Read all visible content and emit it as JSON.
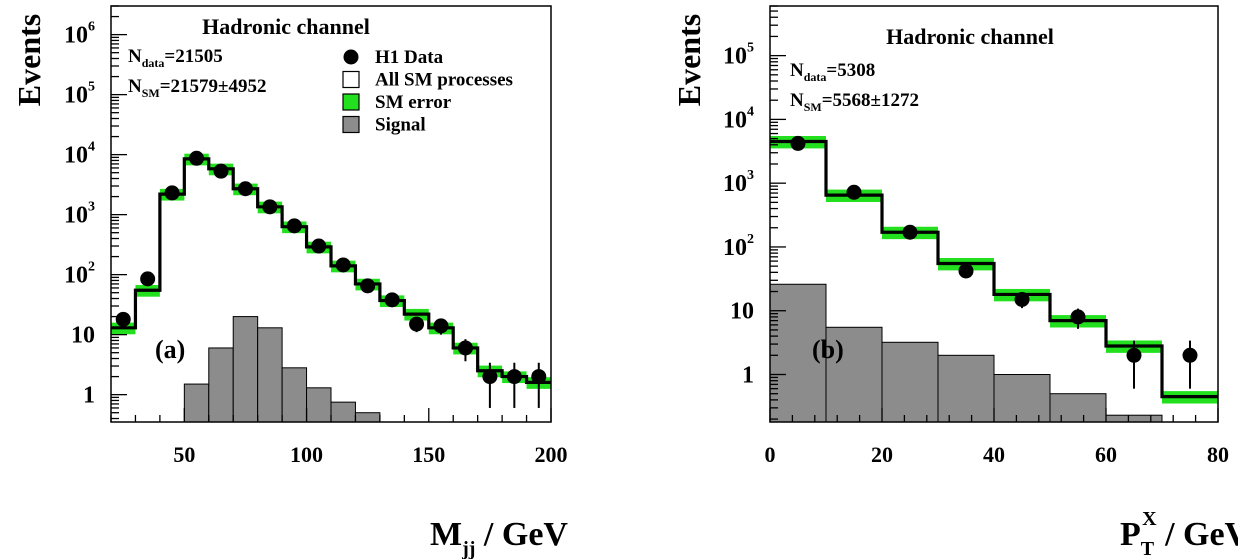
{
  "chart_data": [
    {
      "type": "histogram",
      "panel_label": "(a)",
      "title": "Hadronic channel",
      "ylabel": "Events",
      "xlabel": {
        "main": "M",
        "sub": "jj",
        "rest": " / GeV"
      },
      "log_y": true,
      "xlim": [
        20,
        200
      ],
      "ylim": [
        0.35,
        3000000
      ],
      "x_ticks": [
        50,
        100,
        150,
        200
      ],
      "y_ticks": [
        {
          "value": 1,
          "label": "1"
        },
        {
          "value": 10,
          "label": "10"
        },
        {
          "value": 100,
          "label": "10",
          "exp": "2"
        },
        {
          "value": 1000,
          "label": "10",
          "exp": "3"
        },
        {
          "value": 10000,
          "label": "10",
          "exp": "4"
        },
        {
          "value": 100000,
          "label": "10",
          "exp": "5"
        },
        {
          "value": 1000000,
          "label": "10",
          "exp": "6"
        }
      ],
      "stats": [
        {
          "main": "N",
          "sub": "data",
          "value": "=21505"
        },
        {
          "main": "N",
          "sub": "SM",
          "value": "=21579±4952"
        }
      ],
      "legend": [
        {
          "label": "H1 Data",
          "kind": "dot"
        },
        {
          "label": "All SM processes",
          "kind": "box-open"
        },
        {
          "label": "SM error",
          "kind": "box-green"
        },
        {
          "label": "Signal",
          "kind": "box-grey"
        }
      ],
      "bin_edges": [
        20,
        30,
        40,
        50,
        60,
        70,
        80,
        90,
        100,
        110,
        120,
        130,
        140,
        150,
        160,
        170,
        180,
        190,
        200
      ],
      "sm": [
        13,
        55,
        2200,
        8500,
        5800,
        2700,
        1350,
        630,
        290,
        140,
        70,
        37,
        22,
        13,
        6,
        2.5,
        2,
        1.6
      ],
      "sm_err_frac": 0.22,
      "signal": [
        null,
        null,
        null,
        1.5,
        6,
        20,
        13,
        2.8,
        1.3,
        0.75,
        0.5,
        null,
        null,
        null,
        null,
        null,
        null,
        null
      ],
      "data": [
        {
          "x": 25,
          "y": 18,
          "lo": 14,
          "hi": 23
        },
        {
          "x": 35,
          "y": 85,
          "lo": 76,
          "hi": 94
        },
        {
          "x": 45,
          "y": 2300,
          "lo": 2250,
          "hi": 2350
        },
        {
          "x": 55,
          "y": 8700,
          "lo": 8600,
          "hi": 8800
        },
        {
          "x": 65,
          "y": 5300,
          "lo": 5230,
          "hi": 5370
        },
        {
          "x": 75,
          "y": 2700,
          "lo": 2650,
          "hi": 2750
        },
        {
          "x": 85,
          "y": 1350,
          "lo": 1313,
          "hi": 1387
        },
        {
          "x": 95,
          "y": 650,
          "lo": 625,
          "hi": 675
        },
        {
          "x": 105,
          "y": 300,
          "lo": 283,
          "hi": 317
        },
        {
          "x": 115,
          "y": 145,
          "lo": 133,
          "hi": 157
        },
        {
          "x": 125,
          "y": 65,
          "lo": 57,
          "hi": 73
        },
        {
          "x": 135,
          "y": 38,
          "lo": 32,
          "hi": 44
        },
        {
          "x": 145,
          "y": 15,
          "lo": 11,
          "hi": 19
        },
        {
          "x": 155,
          "y": 14,
          "lo": 10,
          "hi": 18
        },
        {
          "x": 165,
          "y": 6,
          "lo": 3.6,
          "hi": 8.4
        },
        {
          "x": 175,
          "y": 2,
          "lo": 0.6,
          "hi": 3.4
        },
        {
          "x": 185,
          "y": 2,
          "lo": 0.6,
          "hi": 3.4
        },
        {
          "x": 195,
          "y": 2,
          "lo": 0.6,
          "hi": 3.4
        }
      ]
    },
    {
      "type": "histogram",
      "panel_label": "(b)",
      "title": "Hadronic channel",
      "ylabel": "Events",
      "xlabel": {
        "main": "P",
        "sub": "T",
        "sup": "X",
        "rest": " / GeV"
      },
      "log_y": true,
      "xlim": [
        0,
        80
      ],
      "ylim": [
        0.18,
        600000
      ],
      "x_ticks": [
        0,
        20,
        40,
        60,
        80
      ],
      "y_ticks": [
        {
          "value": 1,
          "label": "1"
        },
        {
          "value": 10,
          "label": "10"
        },
        {
          "value": 100,
          "label": "10",
          "exp": "2"
        },
        {
          "value": 1000,
          "label": "10",
          "exp": "3"
        },
        {
          "value": 10000,
          "label": "10",
          "exp": "4"
        },
        {
          "value": 100000,
          "label": "10",
          "exp": "5"
        }
      ],
      "stats": [
        {
          "main": "N",
          "sub": "data",
          "value": "=5308"
        },
        {
          "main": "N",
          "sub": "SM",
          "value": "=5568±1272"
        }
      ],
      "bin_edges": [
        0,
        10,
        20,
        30,
        40,
        50,
        60,
        70,
        80
      ],
      "sm": [
        4500,
        650,
        170,
        55,
        18,
        7,
        2.8,
        0.45
      ],
      "sm_err_frac": 0.22,
      "signal": [
        26,
        5.5,
        3.2,
        2,
        1,
        0.5,
        0.23,
        null
      ],
      "data": [
        {
          "x": 5,
          "y": 4200,
          "lo": 4135,
          "hi": 4265
        },
        {
          "x": 15,
          "y": 720,
          "lo": 693,
          "hi": 747
        },
        {
          "x": 25,
          "y": 170,
          "lo": 157,
          "hi": 183
        },
        {
          "x": 35,
          "y": 42,
          "lo": 36,
          "hi": 48
        },
        {
          "x": 45,
          "y": 15,
          "lo": 11,
          "hi": 19
        },
        {
          "x": 55,
          "y": 8,
          "lo": 5.2,
          "hi": 10.8
        },
        {
          "x": 65,
          "y": 2,
          "lo": 0.6,
          "hi": 3.4
        },
        {
          "x": 75,
          "y": 2,
          "lo": 0.6,
          "hi": 3.4
        }
      ]
    }
  ]
}
